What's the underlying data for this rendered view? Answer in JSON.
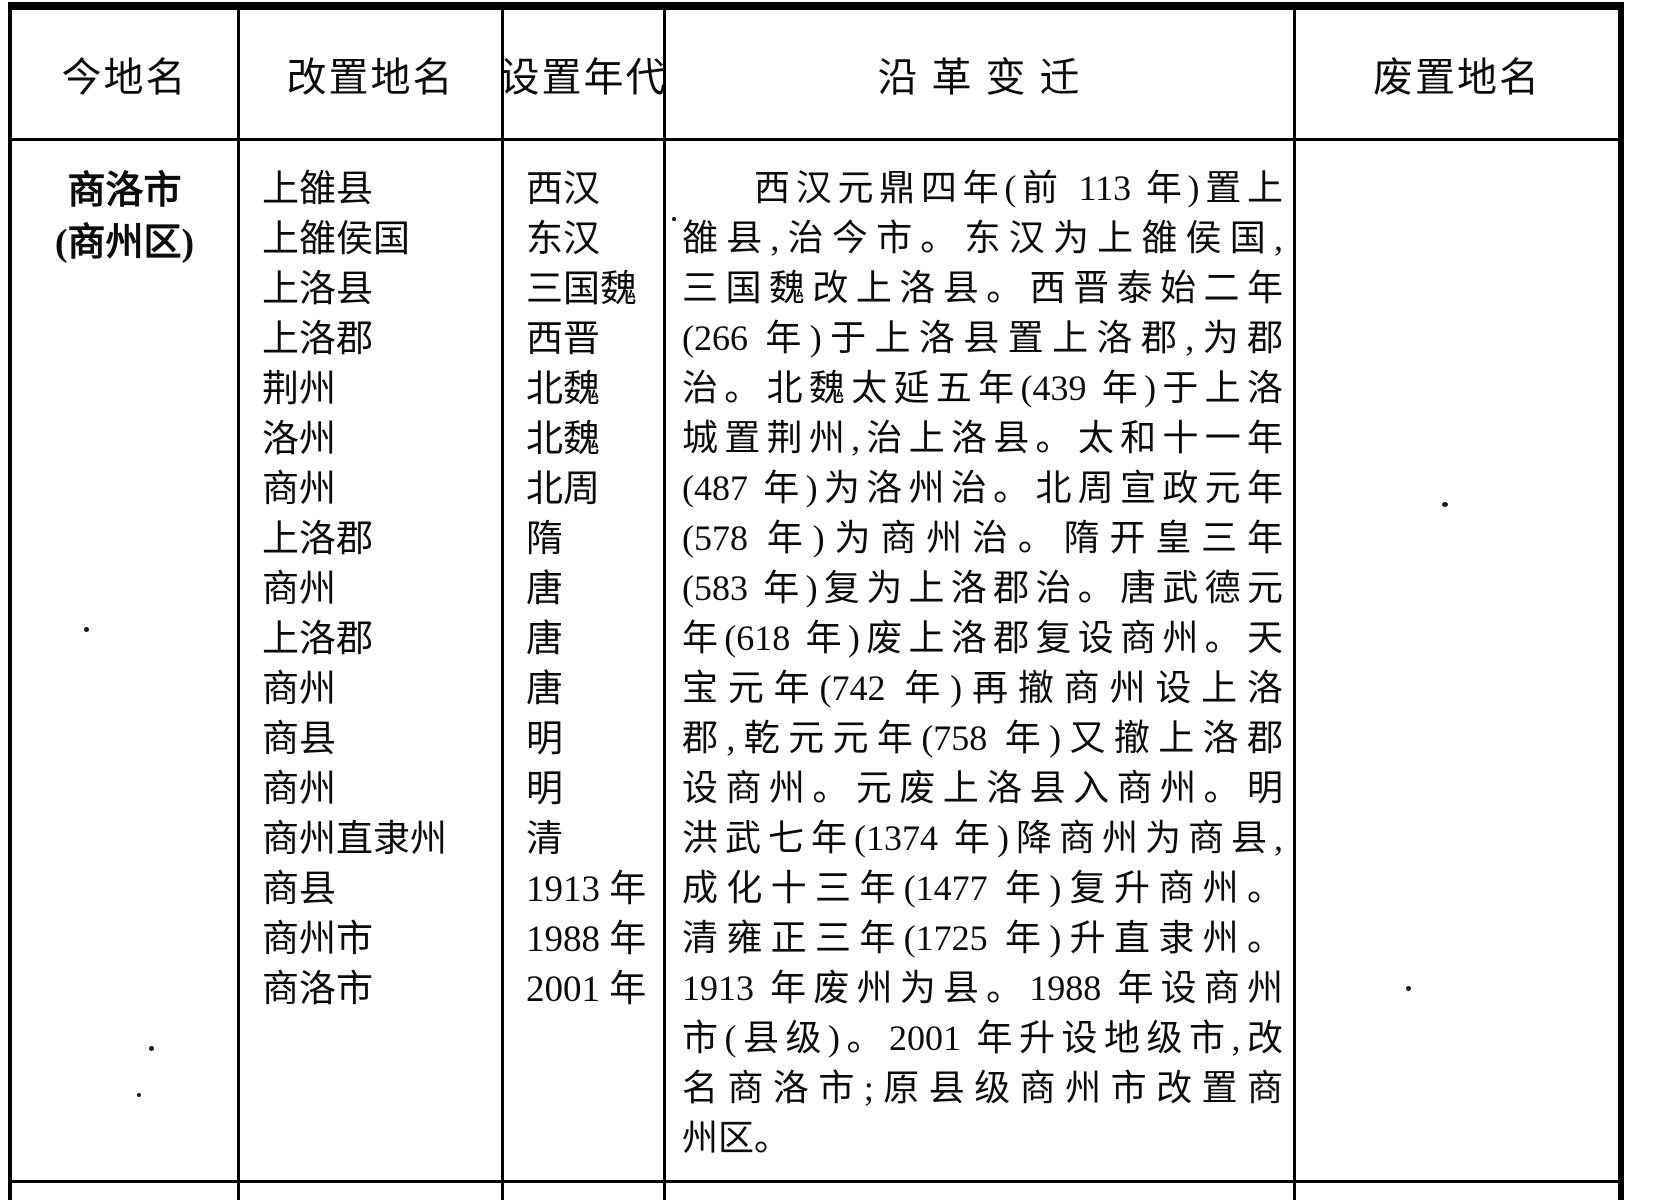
{
  "table": {
    "headers": [
      "今地名",
      "改置地名",
      "设置年代",
      "沿 革 变 迁",
      "废置地名"
    ],
    "row": {
      "today_name_lines": [
        "商洛市",
        "(商州区)"
      ],
      "renamed_places": [
        "上雒县",
        "上雒侯国",
        "上洛县",
        "上洛郡",
        "荆州",
        "洛州",
        "商州",
        "上洛郡",
        "商州",
        "上洛郡",
        "商州",
        "商县",
        "商州",
        "商州直隶州",
        "商县",
        "商州市",
        "商洛市"
      ],
      "setup_eras": [
        "西汉",
        "东汉",
        "三国魏",
        "西晋",
        "北魏",
        "北魏",
        "北周",
        "隋",
        "唐",
        "唐",
        "唐",
        "明",
        "明",
        "清",
        "1913 年",
        "1988 年",
        "2001 年"
      ],
      "history_lines": [
        "西汉元鼎四年(前 113 年)置上",
        "雒县,治今市。东汉为上雒侯国,",
        "三国魏改上洛县。西晋泰始二年",
        "(266 年)于上洛县置上洛郡,为郡",
        "治。北魏太延五年(439 年)于上洛",
        "城置荆州,治上洛县。太和十一年",
        "(487 年)为洛州治。北周宣政元年",
        "(578 年)为商州治。隋开皇三年",
        "(583 年)复为上洛郡治。唐武德元",
        "年(618 年)废上洛郡复设商州。天",
        "宝元年(742 年)再撤商州设上洛",
        "郡,乾元元年(758 年)又撤上洛郡",
        "设商州。元废上洛县入商州。明",
        "洪武七年(1374 年)降商州为商县,",
        "成化十三年(1477 年)复升商州。",
        "清雍正三年(1725 年)升直隶州。",
        "1913 年废州为县。1988 年设商州",
        "市(县级)。2001 年升设地级市,改",
        "名商洛市;原县级商州市改置商",
        "州区。"
      ],
      "abolished_name": ""
    }
  }
}
